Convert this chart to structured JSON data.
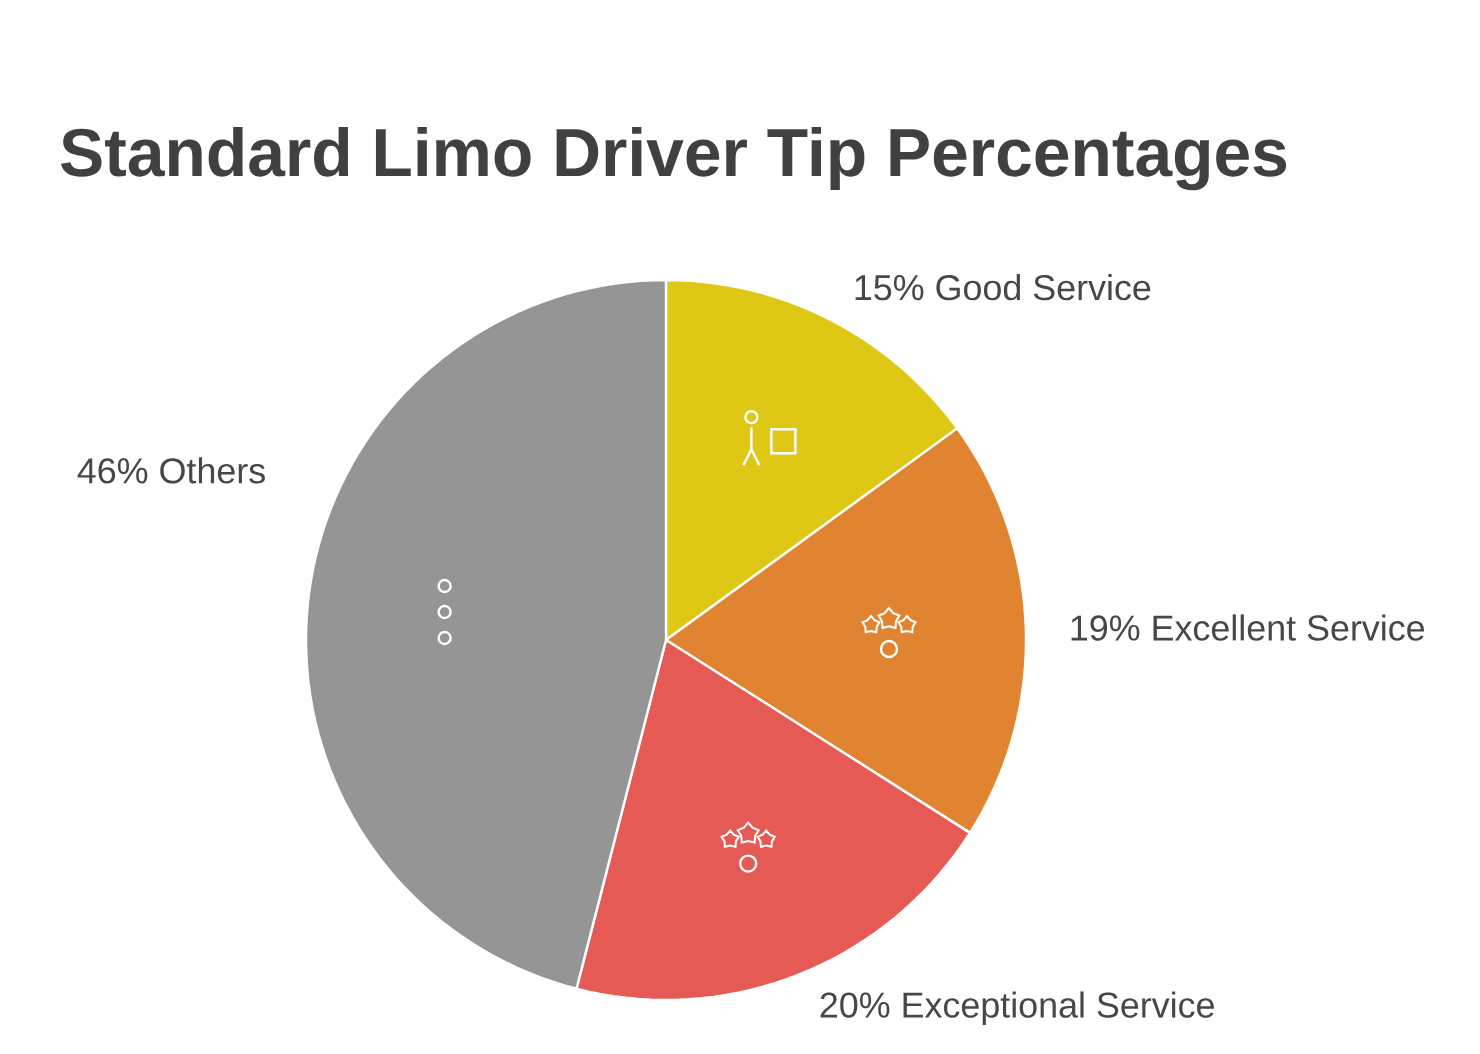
{
  "chart_data": {
    "type": "pie",
    "title": "Standard Limo Driver Tip Percentages",
    "categories": [
      "Good Service",
      "Excellent Service",
      "Exceptional Service",
      "Others"
    ],
    "values": [
      15,
      19,
      20,
      46
    ],
    "value_labels": [
      "15%",
      "19%",
      "20%",
      "46%"
    ],
    "colors": [
      "#dfc815",
      "#e08431",
      "#e55a55",
      "#959595"
    ]
  }
}
